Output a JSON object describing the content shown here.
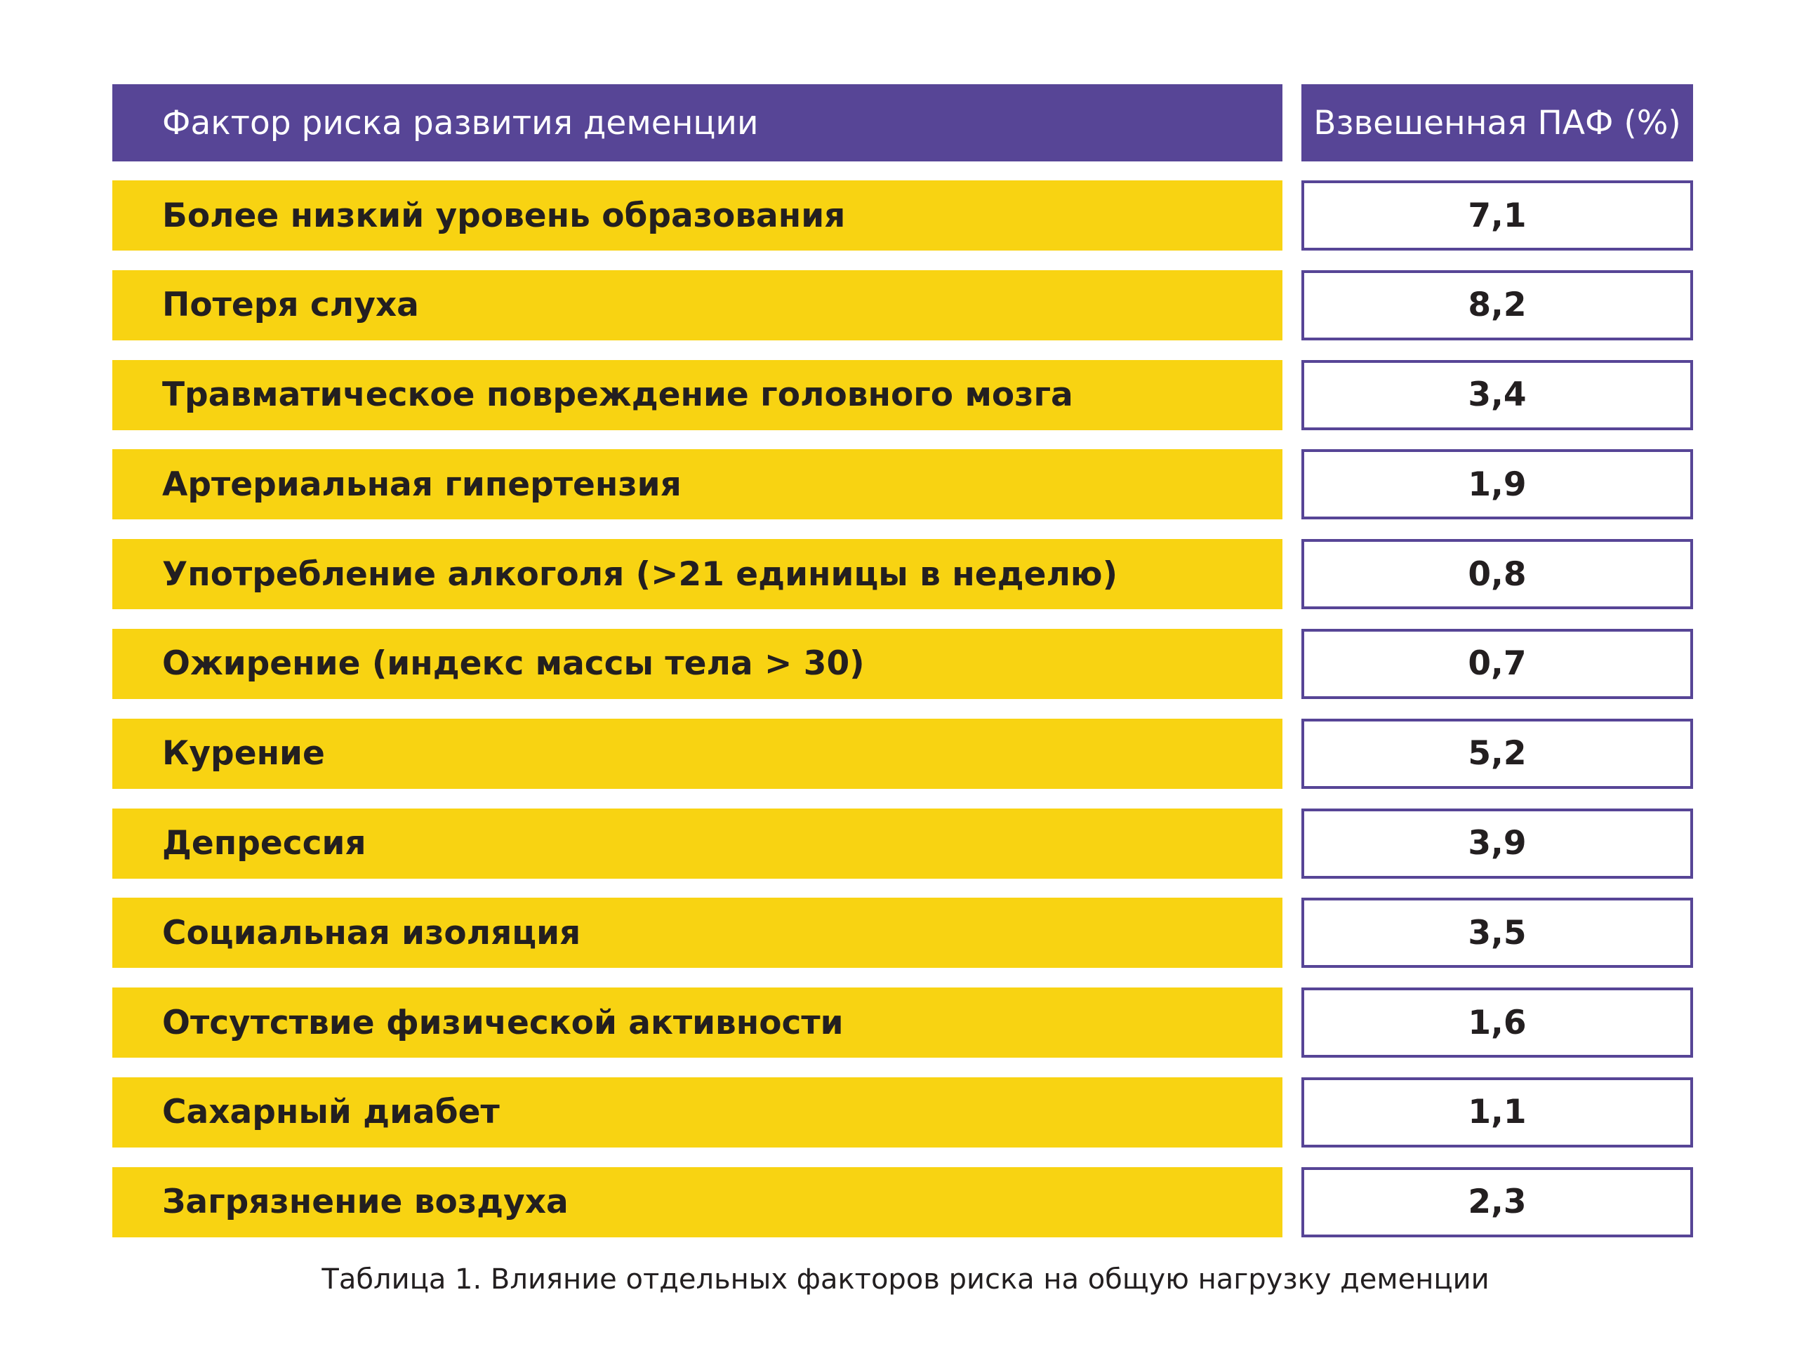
{
  "header": {
    "factor": "Фактор риска развития деменции",
    "value": "Взвешенная ПАФ (%)"
  },
  "rows": [
    {
      "factor": "Более низкий уровень образования",
      "value": "7,1"
    },
    {
      "factor": "Потеря слуха",
      "value": "8,2"
    },
    {
      "factor": "Травматическое повреждение головного мозга",
      "value": "3,4"
    },
    {
      "factor": "Артериальная гипертензия",
      "value": "1,9"
    },
    {
      "factor": "Употребление алкоголя (>21 единицы в неделю)",
      "value": "0,8"
    },
    {
      "factor": "Ожирение (индекс массы тела > 30)",
      "value": "0,7"
    },
    {
      "factor": "Курение",
      "value": "5,2"
    },
    {
      "factor": "Депрессия",
      "value": "3,9"
    },
    {
      "factor": "Социальная изоляция",
      "value": "3,5"
    },
    {
      "factor": "Отсутствие физической активности",
      "value": "1,6"
    },
    {
      "factor": "Сахарный диабет",
      "value": "1,1"
    },
    {
      "factor": "Загрязнение воздуха",
      "value": "2,3"
    }
  ],
  "caption": "Таблица 1. Влияние отдельных факторов риска на общую нагрузку деменции",
  "colors": {
    "header_bg": "#574596",
    "factor_bg": "#f8d312",
    "value_border": "#574596",
    "text": "#231f20"
  }
}
